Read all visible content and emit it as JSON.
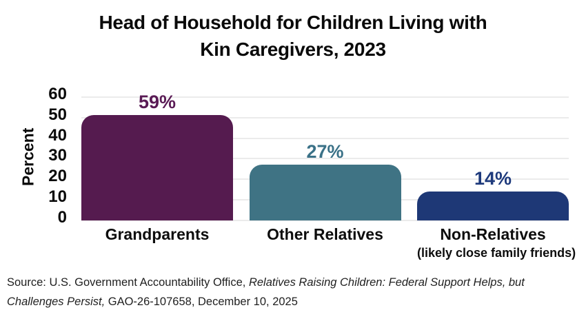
{
  "title": {
    "line1": "Head of Household for Children Living with",
    "line2": "Kin Caregivers, 2023"
  },
  "chart_data": {
    "type": "bar",
    "title": "Head of Household for Children Living with Kin Caregivers, 2023",
    "categories": [
      "Grandparents",
      "Other Relatives",
      "Non-Relatives"
    ],
    "category_sublabels": [
      "",
      "",
      "(likely close family friends)"
    ],
    "values": [
      59,
      27,
      14
    ],
    "value_labels": [
      "59%",
      "27%",
      "14%"
    ],
    "bar_colors": [
      "#551B4F",
      "#3F7384",
      "#1E3876"
    ],
    "value_label_colors": [
      "#5A1B55",
      "#3A7187",
      "#1E3A7C"
    ],
    "xlabel": "",
    "ylabel": "Percent",
    "yticks": [
      0,
      10,
      20,
      30,
      40,
      50,
      60
    ],
    "ylim": [
      0,
      62
    ],
    "grid": true,
    "gridline_color": "#ebebeb",
    "legend": "none"
  },
  "source": {
    "line1_regular": "Source:  U.S. Government Accountability Office, ",
    "line1_italic": "Relatives Raising Children: Federal Support Helps, but",
    "line2_italic": "Challenges Persist,",
    "line2_regular": " GAO-26-107658, December 10, 2025"
  }
}
